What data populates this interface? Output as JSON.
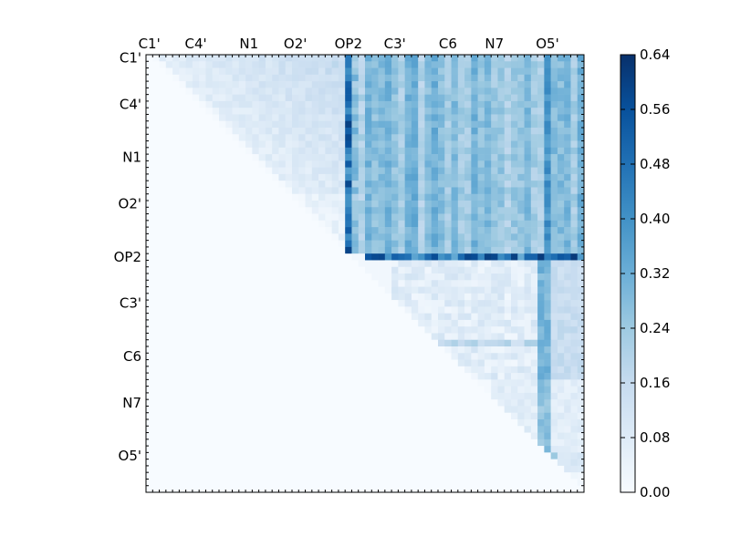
{
  "chart_data": {
    "type": "heatmap",
    "title": "",
    "xlabel": "",
    "ylabel": "",
    "matrix_size": 66,
    "tick_labels": [
      "C1'",
      "C4'",
      "N1",
      "O2'",
      "OP2",
      "C3'",
      "C6",
      "N7",
      "O5'"
    ],
    "tick_indices": [
      0,
      7,
      15,
      22,
      30,
      37,
      45,
      52,
      60
    ],
    "colormap": [
      "#f7fbff",
      "#deebf7",
      "#c6dbef",
      "#9ecae1",
      "#6baed6",
      "#4292c6",
      "#2171b5",
      "#08519c",
      "#08306b"
    ],
    "colorbar": {
      "min": 0.0,
      "max": 0.64,
      "ticks": [
        "0.00",
        "0.08",
        "0.16",
        "0.24",
        "0.32",
        "0.40",
        "0.48",
        "0.56",
        "0.64"
      ]
    },
    "grid": false,
    "legend": "colorbar-right",
    "approx_regions": [
      {
        "rows": [
          0,
          28
        ],
        "cols": [
          30,
          65
        ],
        "value": 0.26,
        "note": "upper-right block, mixed 0.18-0.32"
      },
      {
        "rows": [
          0,
          25
        ],
        "cols": [
          30,
          30
        ],
        "value": 0.5,
        "note": "OP2 column, dark"
      },
      {
        "rows": [
          30,
          30
        ],
        "cols": [
          33,
          65
        ],
        "value": 0.42,
        "note": "OP2 row, dark band"
      },
      {
        "rows": [
          31,
          48
        ],
        "cols": [
          38,
          65
        ],
        "value": 0.1,
        "note": "middle-right light block"
      },
      {
        "rows": [
          30,
          60
        ],
        "cols": [
          59,
          60
        ],
        "value": 0.3,
        "note": "O5' column"
      }
    ]
  }
}
